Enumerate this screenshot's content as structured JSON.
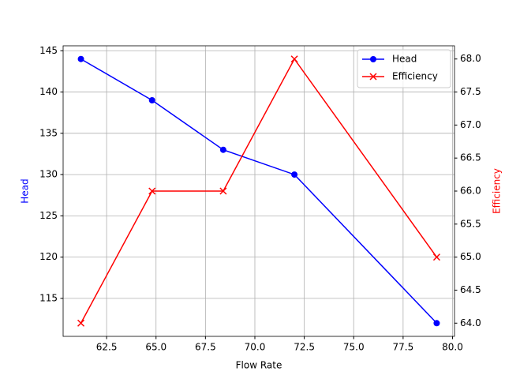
{
  "chart_data": {
    "type": "line",
    "x_label": "Flow Rate",
    "y_label": "Head",
    "y2_label": "Efficiency",
    "x": [
      61.2,
      64.8,
      68.4,
      72.0,
      79.2
    ],
    "series": [
      {
        "name": "Head",
        "color": "#0000ff",
        "marker": "circle",
        "values": [
          144,
          139,
          133,
          130,
          112
        ]
      },
      {
        "name": "Efficiency",
        "color": "#ff0000",
        "marker": "x",
        "axis": "y2",
        "values": [
          64,
          66,
          66,
          68,
          65
        ]
      }
    ],
    "xlim": [
      60.3,
      80.1
    ],
    "xticks": [
      62.5,
      {
        "value": 65,
        "label": "65.0"
      },
      67.5,
      {
        "value": 70,
        "label": "70.0"
      },
      72.5,
      {
        "value": 75,
        "label": "75.0"
      },
      77.5,
      {
        "value": 80,
        "label": "80.0"
      }
    ],
    "ylim": [
      110.4,
      145.6
    ],
    "yticks": [
      115,
      120,
      125,
      130,
      135,
      140,
      145
    ],
    "y2lim": [
      63.8,
      68.2
    ],
    "y2ticks": [
      {
        "value": 64,
        "label": "64.0"
      },
      64.5,
      {
        "value": 65,
        "label": "65.0"
      },
      65.5,
      {
        "value": 66,
        "label": "66.0"
      },
      66.5,
      {
        "value": 67,
        "label": "67.0"
      },
      67.5,
      {
        "value": 68,
        "label": "68.0"
      }
    ],
    "grid": true,
    "legend": "upper right"
  }
}
